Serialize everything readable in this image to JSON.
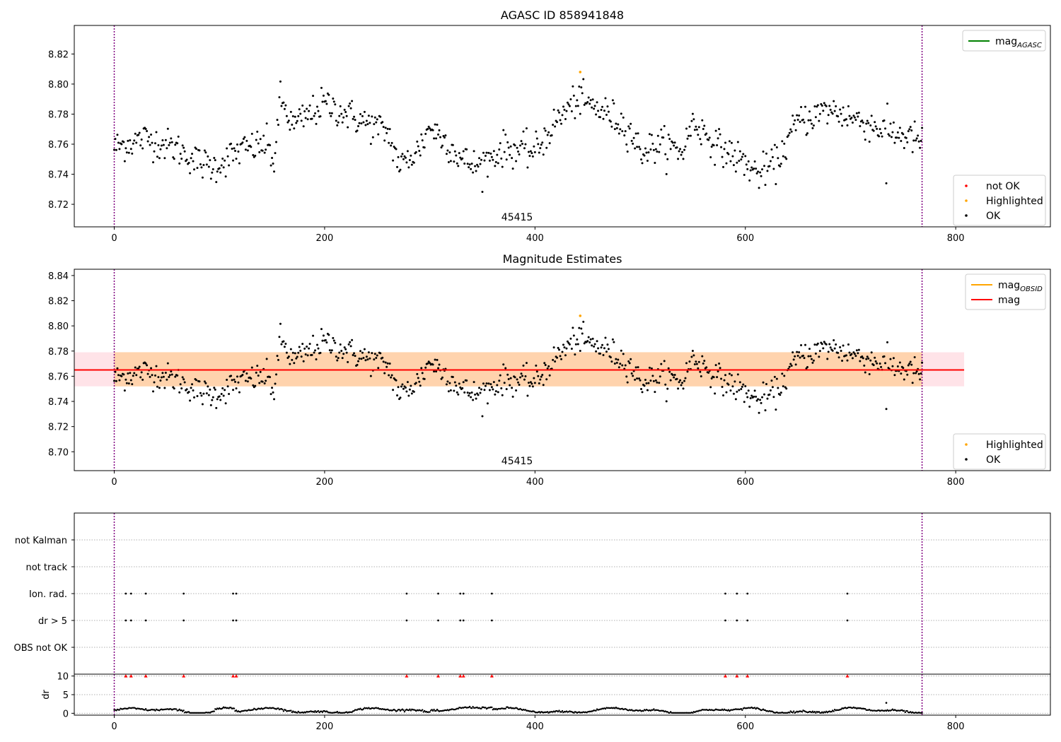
{
  "chart_data": [
    {
      "type": "scatter",
      "title": "AGASC ID 858941848",
      "annotation": "45415",
      "xlim": [
        -38,
        890
      ],
      "ylim": [
        8.705,
        8.839
      ],
      "xticks": [
        0,
        200,
        400,
        600,
        800
      ],
      "yticks": [
        8.72,
        8.74,
        8.76,
        8.78,
        8.8,
        8.82
      ],
      "legend_lines": [
        {
          "label": "mag",
          "sub": "AGASC",
          "color": "#008000"
        }
      ],
      "legend_points": [
        {
          "label": "not OK",
          "color": "#ff0000"
        },
        {
          "label": "Highlighted",
          "color": "#ffa500"
        },
        {
          "label": "OK",
          "color": "#000000"
        }
      ],
      "vlines": [
        0,
        768
      ],
      "highlighted": [
        {
          "x": 443,
          "y": 8.808
        }
      ]
    },
    {
      "type": "scatter",
      "title": "Magnitude Estimates",
      "annotation": "45415",
      "xlim": [
        -38,
        890
      ],
      "ylim": [
        8.685,
        8.845
      ],
      "xticks": [
        0,
        200,
        400,
        600,
        800
      ],
      "yticks": [
        8.7,
        8.72,
        8.74,
        8.76,
        8.78,
        8.8,
        8.82,
        8.84
      ],
      "legend_lines": [
        {
          "label": "mag",
          "sub": "OBSID",
          "color": "#ffa500"
        },
        {
          "label": "mag",
          "sub": "",
          "color": "#ff0000"
        }
      ],
      "legend_points": [
        {
          "label": "Highlighted",
          "color": "#ffa500"
        },
        {
          "label": "OK",
          "color": "#000000"
        }
      ],
      "mag_line": 8.765,
      "band": [
        8.752,
        8.779
      ],
      "band_x": [
        -38,
        808
      ],
      "vlines": [
        0,
        768
      ],
      "highlighted": [
        {
          "x": 443,
          "y": 8.808
        }
      ]
    },
    {
      "type": "scatter",
      "categories": [
        "not Kalman",
        "not track",
        "Ion. rad.",
        "dr > 5",
        "OBS not OK"
      ],
      "flag_x": [
        11,
        16,
        30,
        66,
        113,
        116,
        278,
        308,
        329,
        332,
        359,
        581,
        592,
        602,
        697
      ],
      "flags": {
        "not Kalman": false,
        "not track": false,
        "Ion. rad.": true,
        "dr > 5": true,
        "OBS not OK": false
      },
      "xlim": [
        -38,
        890
      ],
      "xticks": [
        0,
        200,
        400,
        600,
        800
      ],
      "vlines": [
        0,
        768
      ]
    },
    {
      "type": "scatter",
      "ylabel": "dr",
      "xlim": [
        -38,
        890
      ],
      "ylim": [
        -0.5,
        10.5
      ],
      "yticks": [
        0,
        5,
        10
      ],
      "xticks": [
        0,
        200,
        400,
        600,
        800
      ],
      "clipped_x": [
        11,
        16,
        30,
        66,
        113,
        116,
        278,
        308,
        329,
        332,
        359,
        581,
        592,
        602,
        697
      ],
      "clipped_value": 10,
      "outliers": [
        {
          "x": 734,
          "y": 2.8
        }
      ],
      "vlines": [
        0,
        768
      ]
    }
  ]
}
